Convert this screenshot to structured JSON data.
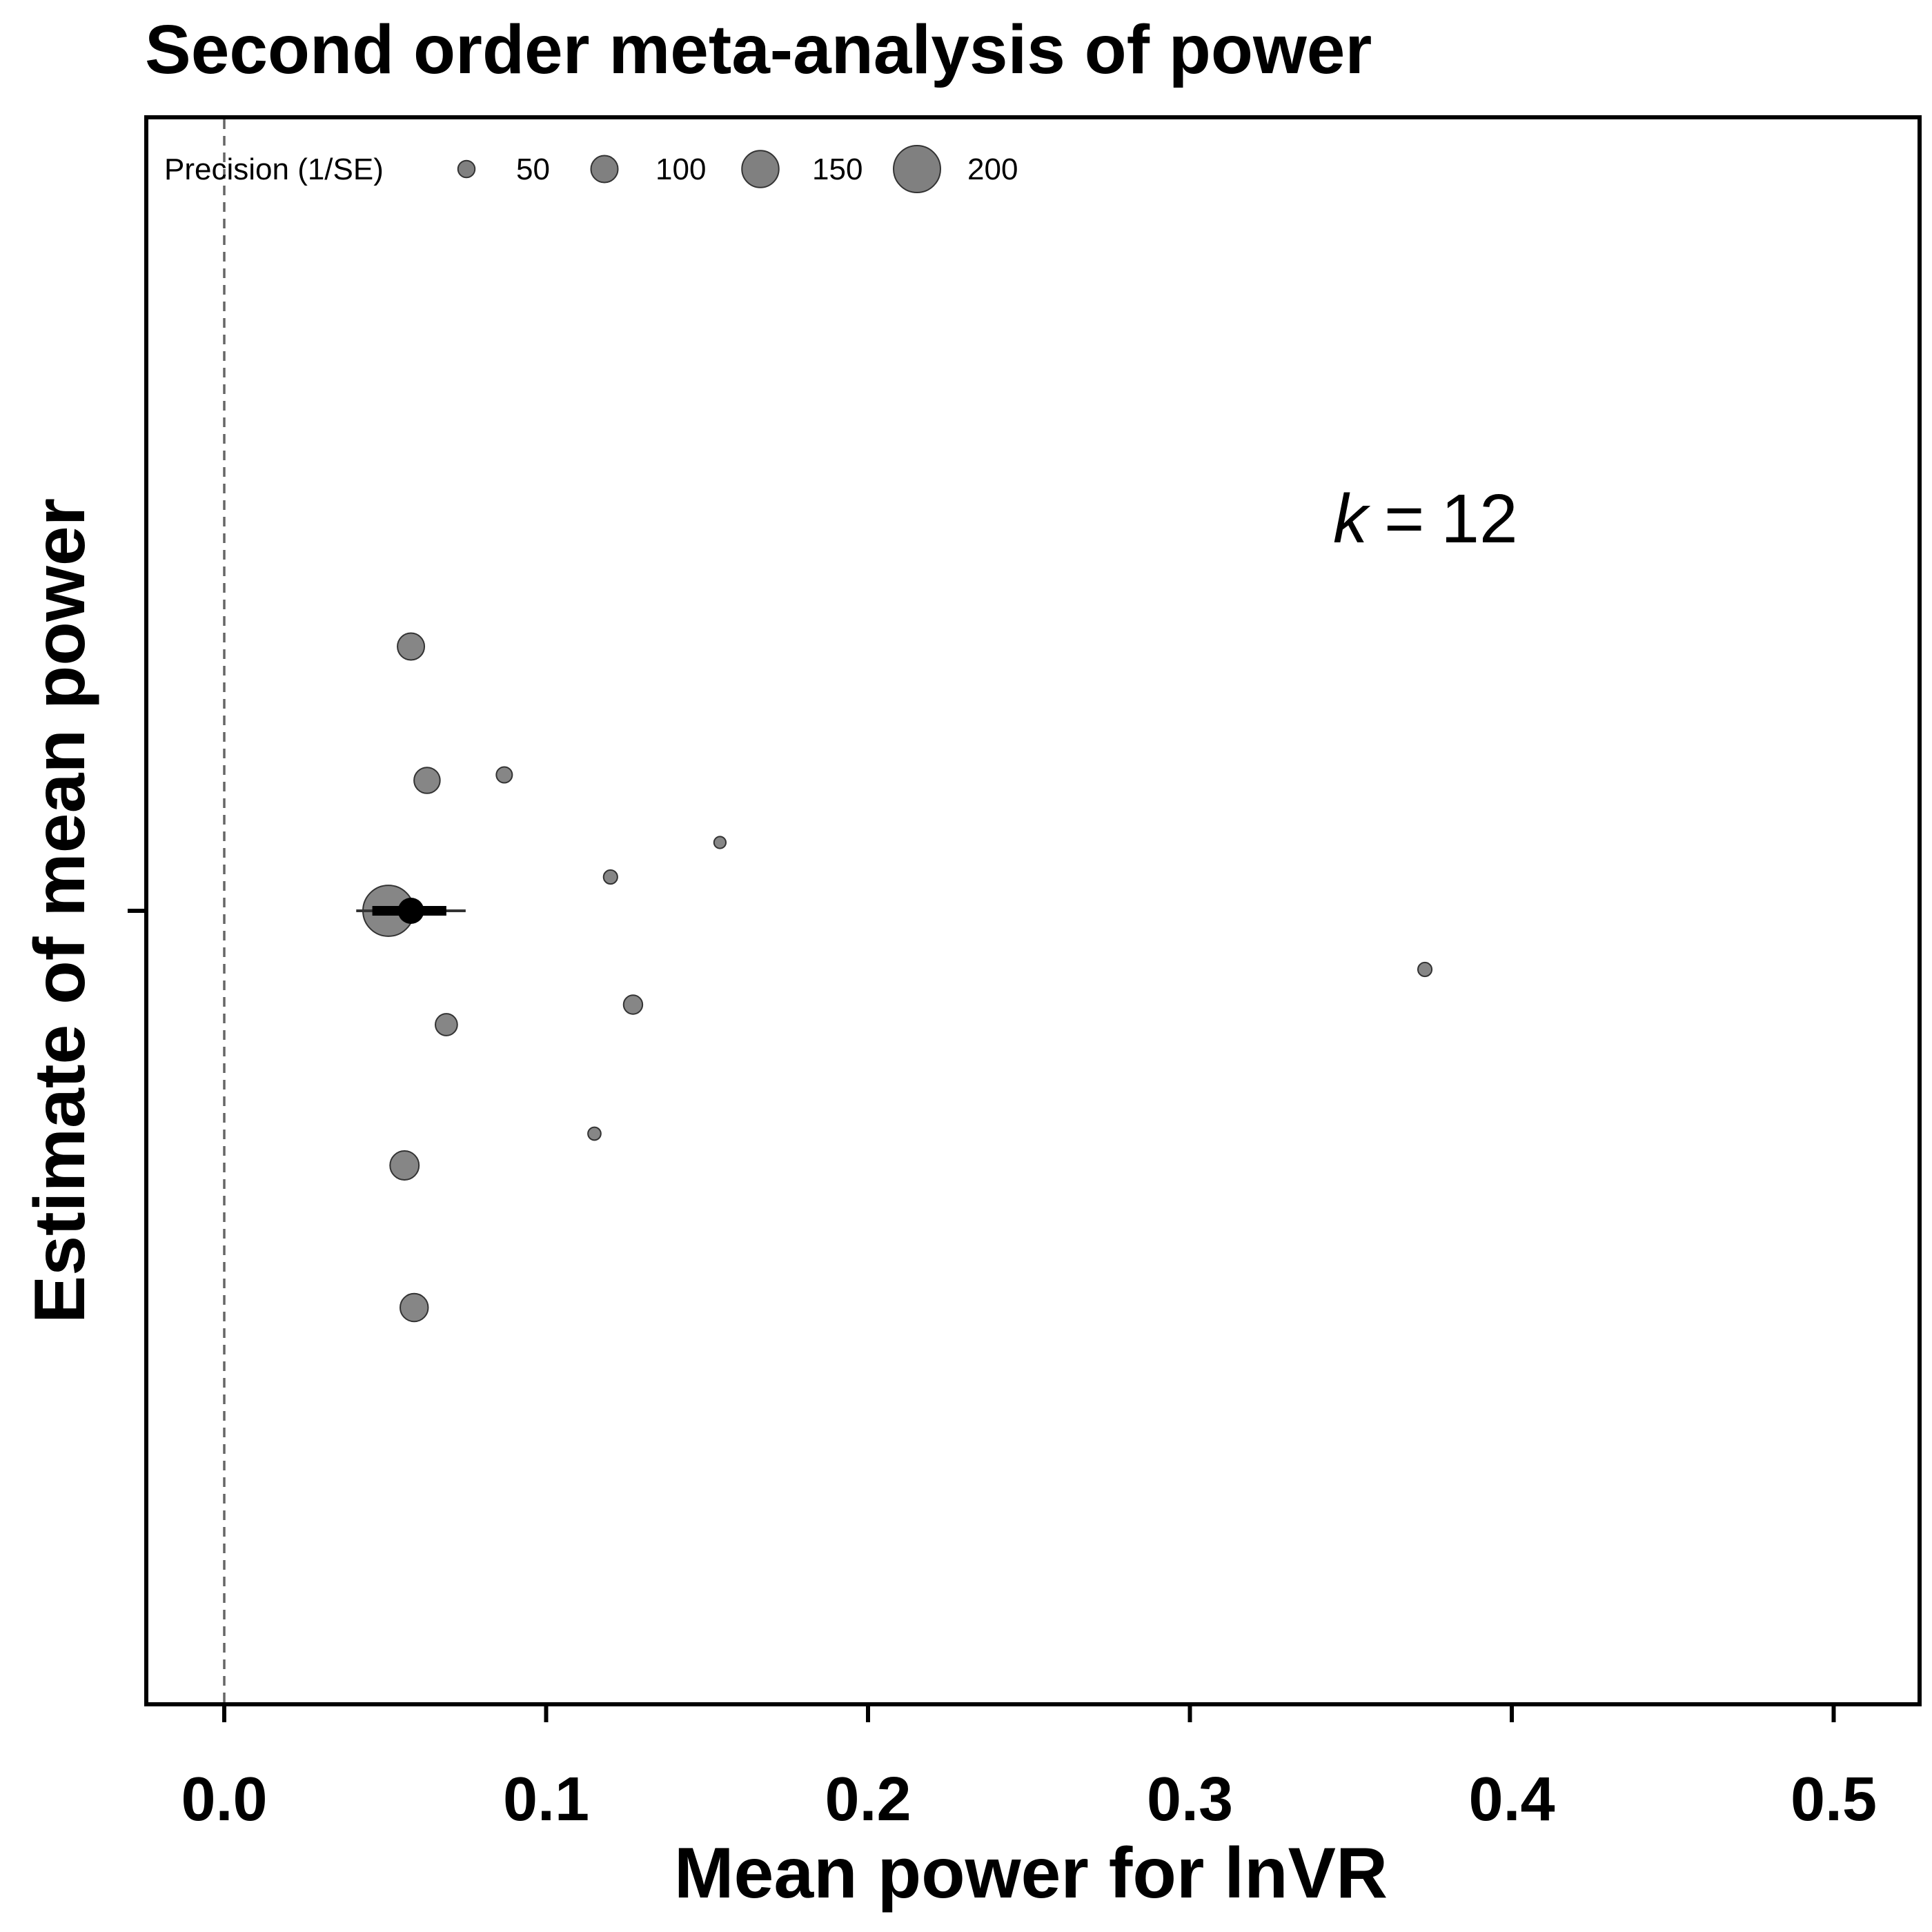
{
  "chart_data": {
    "type": "scatter",
    "title": "Second order meta-analysis of power",
    "xlabel": "Mean power for lnVR",
    "ylabel": "Estimate of mean power",
    "xlim": [
      -0.024,
      0.523
    ],
    "x_ticks": [
      "0.0",
      "0.1",
      "0.2",
      "0.3",
      "0.4",
      "0.5"
    ],
    "x_tick_values": [
      0.0,
      0.1,
      0.2,
      0.3,
      0.4,
      0.5
    ],
    "reference_line_x": 0.0,
    "grid": false,
    "legend": {
      "title": "Precision (1/SE)",
      "placement": "top-left",
      "entries": [
        "50",
        "100",
        "150",
        "200"
      ],
      "values": [
        50,
        100,
        150,
        200
      ]
    },
    "annotation": {
      "k_symbol": "k",
      "equals": "=",
      "k_value": "12"
    },
    "points": [
      {
        "x": 0.058,
        "precision": 100
      },
      {
        "x": 0.063,
        "precision": 95
      },
      {
        "x": 0.087,
        "precision": 45
      },
      {
        "x": 0.154,
        "precision": 25
      },
      {
        "x": 0.12,
        "precision": 35
      },
      {
        "x": 0.051,
        "precision": 220
      },
      {
        "x": 0.373,
        "precision": 35
      },
      {
        "x": 0.127,
        "precision": 60
      },
      {
        "x": 0.069,
        "precision": 75
      },
      {
        "x": 0.115,
        "precision": 30
      },
      {
        "x": 0.056,
        "precision": 110
      },
      {
        "x": 0.059,
        "precision": 105
      }
    ],
    "summary": {
      "estimate": 0.058,
      "ci_lower": 0.046,
      "ci_upper": 0.069,
      "pi_lower": 0.041,
      "pi_upper": 0.075
    },
    "point_color": "#808080",
    "summary_color": "#000000"
  }
}
